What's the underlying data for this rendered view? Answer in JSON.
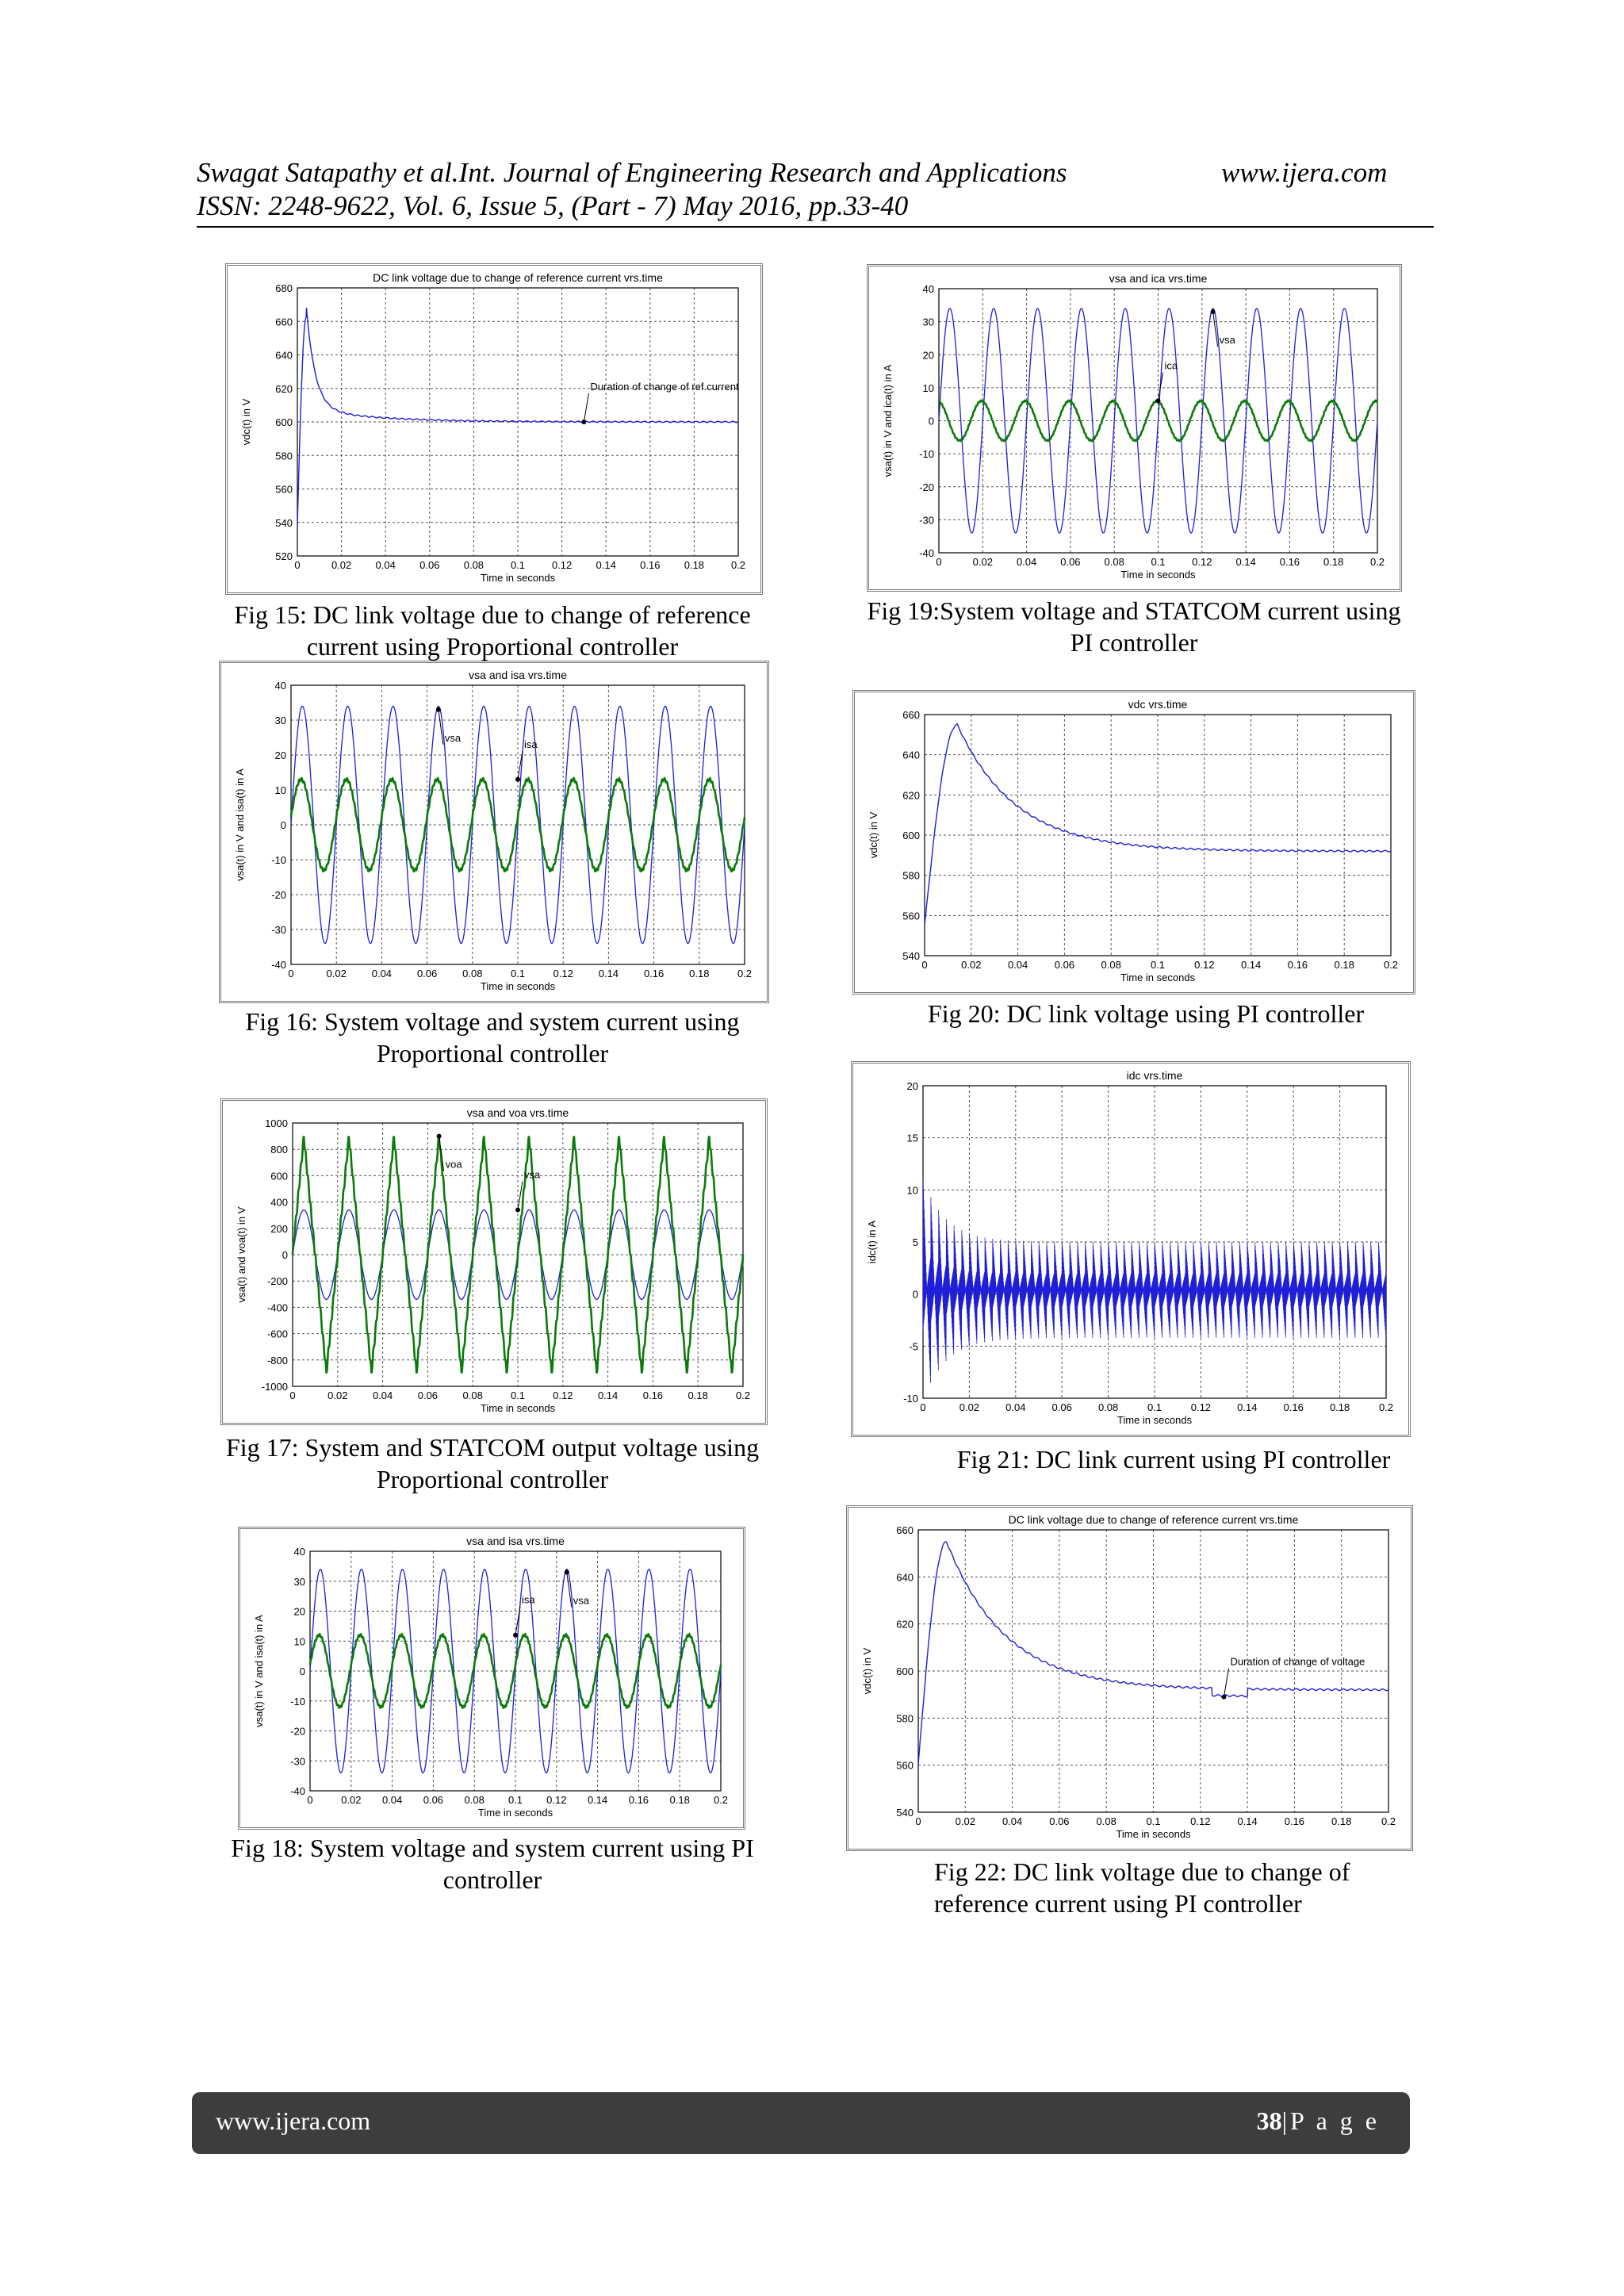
{
  "header": {
    "line1": "Swagat Satapathy et al.Int. Journal of Engineering Research and Applications",
    "site": "www.ijera.com",
    "line2": "ISSN: 2248-9622, Vol. 6, Issue 5, (Part - 7) May 2016, pp.33-40"
  },
  "footer": {
    "site": "www.ijera.com",
    "page_num": "38",
    "page_word": "|P a g e"
  },
  "captions": {
    "fig15": [
      "Fig 15: DC link voltage due to change of reference",
      "current using Proportional controller"
    ],
    "fig16": [
      "Fig 16: System voltage and system current using",
      "Proportional controller"
    ],
    "fig17": [
      "Fig 17: System and STATCOM output voltage using",
      "Proportional controller"
    ],
    "fig18": [
      "Fig 18: System voltage and system current using PI",
      "controller"
    ],
    "fig19": [
      "Fig 19:System voltage and STATCOM current using",
      "PI controller"
    ],
    "fig20": [
      "Fig 20: DC link voltage using PI controller"
    ],
    "fig21": [
      "Fig 21: DC link current using PI controller"
    ],
    "fig22": [
      "Fig 22: DC link voltage due to change of",
      "reference current using PI controller"
    ]
  },
  "colors": {
    "blue": "#1f1fd8",
    "green": "#0a7a0a",
    "grid": "#555555"
  },
  "chart_data": [
    {
      "id": "fig15",
      "type": "line",
      "title": "DC link voltage due to change of reference current vrs.time",
      "xlabel": "Time in seconds",
      "ylabel": "vdc(t) in V",
      "xlim": [
        0,
        0.2
      ],
      "ylim": [
        520,
        680
      ],
      "yticks": [
        520,
        540,
        560,
        580,
        600,
        620,
        640,
        660,
        680
      ],
      "grid": true,
      "kind": "dc",
      "params": {
        "v0": 538,
        "peak_t": 0.004,
        "peak": 662,
        "final": 600,
        "tau": 0.004,
        "slow": 8,
        "slow_tau": 0.03
      },
      "series": [
        {
          "name": "",
          "color": "blue"
        }
      ],
      "annotations": [
        {
          "text": "Duration of change of ref.current",
          "x": 0.13,
          "y": 600
        }
      ]
    },
    {
      "id": "fig16",
      "type": "line",
      "title": "vsa and isa vrs.time",
      "xlabel": "Time in seconds",
      "ylabel": "vsa(t) in V and isa(t) in A",
      "xlim": [
        0,
        0.2
      ],
      "ylim": [
        -40,
        40
      ],
      "yticks": [
        -40,
        -30,
        -20,
        -10,
        0,
        10,
        20,
        30,
        40
      ],
      "grid": true,
      "kind": "sine",
      "series": [
        {
          "name": "vsa",
          "amplitude": 34,
          "freq_hz": 50,
          "phase_deg": 0,
          "color": "blue"
        },
        {
          "name": "isa",
          "amplitude": 13,
          "freq_hz": 50,
          "phase_deg": 10,
          "color": "green"
        }
      ],
      "annotations": [
        {
          "text": "vsa",
          "x": 0.065,
          "y": 33
        },
        {
          "text": "isa",
          "x": 0.1,
          "y": 13
        }
      ]
    },
    {
      "id": "fig17",
      "type": "line",
      "title": "vsa and voa vrs.time",
      "xlabel": "Time in seconds",
      "ylabel": "vsa(t) and voa(t) in V",
      "xlim": [
        0,
        0.2
      ],
      "ylim": [
        -1000,
        1000
      ],
      "yticks": [
        -1000,
        -800,
        -600,
        -400,
        -200,
        0,
        200,
        400,
        600,
        800,
        1000
      ],
      "grid": true,
      "kind": "sine",
      "series": [
        {
          "name": "vsa",
          "amplitude": 340,
          "freq_hz": 50,
          "phase_deg": 0,
          "color": "blue"
        },
        {
          "name": "voa",
          "amplitude": 900,
          "freq_hz": 50,
          "phase_deg": 0,
          "color": "green",
          "shape": "triangle"
        }
      ],
      "annotations": [
        {
          "text": "voa",
          "x": 0.065,
          "y": 900
        },
        {
          "text": "vsa",
          "x": 0.1,
          "y": 340
        }
      ]
    },
    {
      "id": "fig18",
      "type": "line",
      "title": "vsa and isa vrs.time",
      "xlabel": "Time in seconds",
      "ylabel": "vsa(t) in V and isa(t) in A",
      "xlim": [
        0,
        0.2
      ],
      "ylim": [
        -40,
        40
      ],
      "yticks": [
        -40,
        -30,
        -20,
        -10,
        0,
        10,
        20,
        30,
        40
      ],
      "grid": true,
      "kind": "sine",
      "series": [
        {
          "name": "vsa",
          "amplitude": 34,
          "freq_hz": 50,
          "phase_deg": 0,
          "color": "blue"
        },
        {
          "name": "isa",
          "amplitude": 12,
          "freq_hz": 50,
          "phase_deg": 10,
          "color": "green"
        }
      ],
      "annotations": [
        {
          "text": "vsa",
          "x": 0.125,
          "y": 33
        },
        {
          "text": "isa",
          "x": 0.1,
          "y": 12
        }
      ]
    },
    {
      "id": "fig19",
      "type": "line",
      "title": "vsa and ica vrs.time",
      "xlabel": "Time in seconds",
      "ylabel": "vsa(t) in V and ica(t) in A",
      "xlim": [
        0,
        0.2
      ],
      "ylim": [
        -40,
        40
      ],
      "yticks": [
        -40,
        -30,
        -20,
        -10,
        0,
        10,
        20,
        30,
        40
      ],
      "grid": true,
      "kind": "sine",
      "series": [
        {
          "name": "vsa",
          "amplitude": 34,
          "freq_hz": 50,
          "phase_deg": 0,
          "color": "blue"
        },
        {
          "name": "ica",
          "amplitude": 6,
          "freq_hz": 50,
          "phase_deg": 100,
          "color": "green"
        }
      ],
      "annotations": [
        {
          "text": "vsa",
          "x": 0.125,
          "y": 33
        },
        {
          "text": "ica",
          "x": 0.1,
          "y": 6
        }
      ]
    },
    {
      "id": "fig20",
      "type": "line",
      "title": "vdc vrs.time",
      "xlabel": "Time in seconds",
      "ylabel": "vdc(t) in V",
      "xlim": [
        0,
        0.2
      ],
      "ylim": [
        540,
        660
      ],
      "yticks": [
        540,
        560,
        580,
        600,
        620,
        640,
        660
      ],
      "grid": true,
      "kind": "dc",
      "params": {
        "v0": 555,
        "peak_t": 0.014,
        "peak": 655,
        "final": 592,
        "tau": 0.025,
        "slow": 0,
        "slow_tau": 0.03
      },
      "series": [
        {
          "name": "",
          "color": "blue"
        }
      ],
      "annotations": []
    },
    {
      "id": "fig21",
      "type": "line",
      "title": "idc vrs.time",
      "xlabel": "Time in seconds",
      "ylabel": "idc(t) in A",
      "xlim": [
        0,
        0.2
      ],
      "ylim": [
        -10,
        20
      ],
      "yticks": [
        -10,
        -5,
        0,
        5,
        10,
        15,
        20
      ],
      "grid": true,
      "kind": "ripple",
      "series": [
        {
          "name": "",
          "color": "blue"
        }
      ],
      "annotations": []
    },
    {
      "id": "fig22",
      "type": "line",
      "title": "DC link voltage due to change of reference current vrs.time",
      "xlabel": "Time in seconds",
      "ylabel": "vdc(t) in V",
      "xlim": [
        0,
        0.2
      ],
      "ylim": [
        540,
        660
      ],
      "yticks": [
        540,
        560,
        580,
        600,
        620,
        640,
        660
      ],
      "grid": true,
      "kind": "dc",
      "params": {
        "v0": 560,
        "peak_t": 0.012,
        "peak": 655,
        "final": 592,
        "tau": 0.025,
        "slow": 0,
        "slow_tau": 0.03,
        "dip_from": 0.125,
        "dip_to": 0.14,
        "dip": 3
      },
      "series": [
        {
          "name": "",
          "color": "blue"
        }
      ],
      "annotations": [
        {
          "text": "Duration of change of voltage",
          "x": 0.13,
          "y": 589
        }
      ]
    }
  ]
}
